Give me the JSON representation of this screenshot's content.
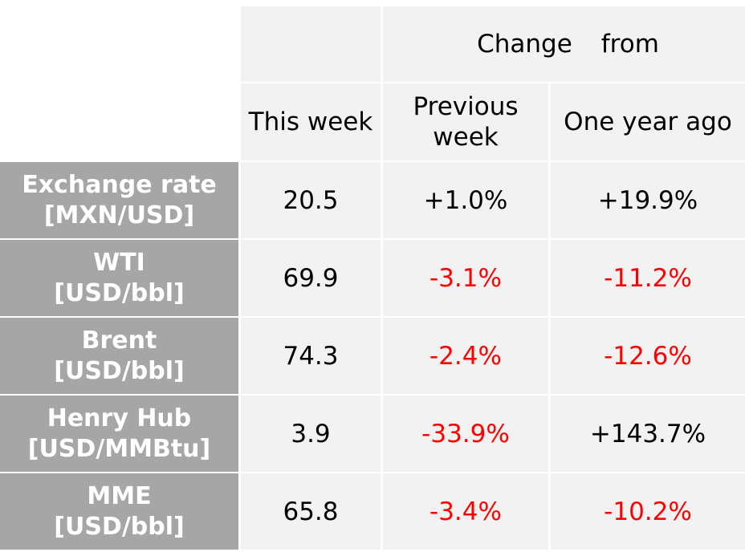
{
  "chart_data": {
    "type": "table",
    "header": {
      "group_label_left": "Change",
      "group_label_right": "from",
      "this_week": "This week",
      "previous_week_line1": "Previous",
      "previous_week_line2": "week",
      "one_year_ago": "One year ago"
    },
    "rows": [
      {
        "name": "Exchange rate",
        "unit": "[MXN/USD]",
        "this_week": "20.5",
        "prev_week": "+1.0%",
        "prev_week_sign": "pos",
        "year_ago": "+19.9%",
        "year_ago_sign": "pos"
      },
      {
        "name": "WTI",
        "unit": "[USD/bbl]",
        "this_week": "69.9",
        "prev_week": "-3.1%",
        "prev_week_sign": "neg",
        "year_ago": "-11.2%",
        "year_ago_sign": "neg"
      },
      {
        "name": "Brent",
        "unit": "[USD/bbl]",
        "this_week": "74.3",
        "prev_week": "-2.4%",
        "prev_week_sign": "neg",
        "year_ago": "-12.6%",
        "year_ago_sign": "neg"
      },
      {
        "name": "Henry Hub",
        "unit": "[USD/MMBtu]",
        "this_week": "3.9",
        "prev_week": "-33.9%",
        "prev_week_sign": "neg",
        "year_ago": "+143.7%",
        "year_ago_sign": "pos"
      },
      {
        "name": "MME",
        "unit": "[USD/bbl]",
        "this_week": "65.8",
        "prev_week": "-3.4%",
        "prev_week_sign": "neg",
        "year_ago": "-10.2%",
        "year_ago_sign": "neg"
      }
    ],
    "colors": {
      "label_bg": "#a6a6a6",
      "cell_bg": "#f2f2f2",
      "negative": "#ff0000",
      "positive": "#000000"
    }
  }
}
